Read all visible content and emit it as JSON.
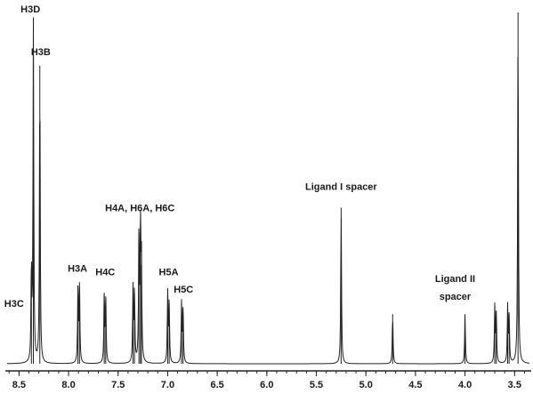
{
  "chart_data": {
    "type": "line",
    "title": "",
    "xlabel": "",
    "ylabel": "",
    "x_reversed": true,
    "xlim": [
      8.62,
      3.35
    ],
    "ylim": [
      0,
      100
    ],
    "x_ticks": [
      "8.5",
      "8.0",
      "7.5",
      "7.0",
      "6.5",
      "6.0",
      "5.5",
      "5.0",
      "4.5",
      "4.0",
      "3.5"
    ],
    "x_tick_values": [
      8.5,
      8.0,
      7.5,
      7.0,
      6.5,
      6.0,
      5.5,
      5.0,
      4.5,
      4.0,
      3.5
    ],
    "series": [
      {
        "peaks": [
          {
            "shift": 8.375,
            "height": 27
          },
          {
            "shift": 8.355,
            "height": 96
          },
          {
            "shift": 8.29,
            "height": 84
          },
          {
            "shift": 7.905,
            "height": 22
          },
          {
            "shift": 7.89,
            "height": 23
          },
          {
            "shift": 7.64,
            "height": 20
          },
          {
            "shift": 7.625,
            "height": 19
          },
          {
            "shift": 7.35,
            "height": 21
          },
          {
            "shift": 7.335,
            "height": 20
          },
          {
            "shift": 7.29,
            "height": 37
          },
          {
            "shift": 7.275,
            "height": 39
          },
          {
            "shift": 7.265,
            "height": 28
          },
          {
            "shift": 7.0,
            "height": 20
          },
          {
            "shift": 6.985,
            "height": 17
          },
          {
            "shift": 6.86,
            "height": 17
          },
          {
            "shift": 6.845,
            "height": 16
          },
          {
            "shift": 5.25,
            "height": 44
          },
          {
            "shift": 4.73,
            "height": 14
          },
          {
            "shift": 4.0,
            "height": 14
          },
          {
            "shift": 3.7,
            "height": 16
          },
          {
            "shift": 3.685,
            "height": 15
          },
          {
            "shift": 3.57,
            "height": 16
          },
          {
            "shift": 3.555,
            "height": 14
          },
          {
            "shift": 3.465,
            "height": 99
          }
        ]
      }
    ],
    "annotations": [
      {
        "text": "H3D",
        "x": 8.385,
        "y": 99
      },
      {
        "text": "H3B",
        "x": 8.28,
        "y": 87
      },
      {
        "text": "H3A",
        "x": 7.91,
        "y": 26
      },
      {
        "text": "H4C",
        "x": 7.63,
        "y": 25
      },
      {
        "text": "H4A, H6A, H6C",
        "x": 7.28,
        "y": 43
      },
      {
        "text": "H5A",
        "x": 6.99,
        "y": 25
      },
      {
        "text": "H5C",
        "x": 6.84,
        "y": 20
      },
      {
        "text": "H3C",
        "x": 8.55,
        "y": 16
      },
      {
        "text": "Ligand I spacer",
        "x": 5.25,
        "y": 49
      },
      {
        "text": "Ligand II",
        "x": 4.1,
        "y": 23
      },
      {
        "text": "spacer",
        "x": 4.1,
        "y": 18
      }
    ]
  }
}
